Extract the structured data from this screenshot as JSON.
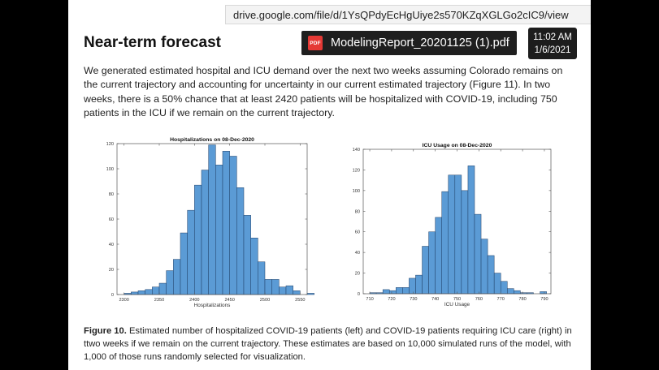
{
  "browser": {
    "url": "drive.google.com/file/d/1YsQPdyEcHgUiye2s570KZqXGLGo2cIC9/view",
    "file_name": "ModelingReport_20201125 (1).pdf",
    "pdf_badge": "PDF"
  },
  "clock": {
    "time": "11:02 AM",
    "date": "1/6/2021"
  },
  "document": {
    "heading": "Near-term forecast",
    "paragraph": "We generated estimated hospital and ICU demand over the next two weeks assuming Colorado remains on the current trajectory and accounting for uncertainty in our current estimated trajectory (Figure 11). In two weeks, there is a 50% chance that at least 2420 patients will be hospitalized with COVID-19, including 750 patients in the ICU if we remain on the current trajectory.",
    "caption_label": "Figure 10.",
    "caption_text": " Estimated number of hospitalized COVID-19 patients (left) and COVID-19 patients requiring ICU care (right) in ttwo weeks if we remain on the current trajectory. These estimates are based on 10,000 simulated runs of the model, with 1,000 of those runs randomly selected for visualization."
  },
  "colors": {
    "bar_fill": "#5b9bd5",
    "bar_stroke": "#1f3f66"
  },
  "chart_data": [
    {
      "type": "bar",
      "title": "Hospitalizations on 08-Dec-2020",
      "xlabel": "Hospitalizations",
      "ylabel": "",
      "xlim": [
        2290,
        2560
      ],
      "ylim": [
        0,
        120
      ],
      "xticks": [
        2300,
        2350,
        2400,
        2450,
        2500,
        2550
      ],
      "yticks": [
        0,
        20,
        40,
        60,
        80,
        100,
        120
      ],
      "bin_start": 2300,
      "bin_width": 10,
      "values": [
        1,
        2,
        3,
        4,
        6,
        9,
        19,
        28,
        49,
        67,
        87,
        99,
        119,
        103,
        114,
        110,
        85,
        63,
        45,
        26,
        12,
        12,
        6,
        7,
        3,
        0,
        1
      ],
      "grid": false
    },
    {
      "type": "bar",
      "title": "ICU Usage on 08-Dec-2020",
      "xlabel": "ICU Usage",
      "ylabel": "",
      "xlim": [
        707,
        793
      ],
      "ylim": [
        0,
        140
      ],
      "xticks": [
        710,
        720,
        730,
        740,
        750,
        760,
        770,
        780,
        790
      ],
      "yticks": [
        0,
        20,
        40,
        60,
        80,
        100,
        120,
        140
      ],
      "bin_start": 710,
      "bin_width": 3,
      "values": [
        1,
        1,
        4,
        3,
        6,
        6,
        15,
        18,
        46,
        60,
        74,
        99,
        115,
        115,
        100,
        124,
        77,
        53,
        37,
        20,
        12,
        5,
        3,
        1,
        1,
        0,
        2
      ],
      "grid": false
    }
  ]
}
